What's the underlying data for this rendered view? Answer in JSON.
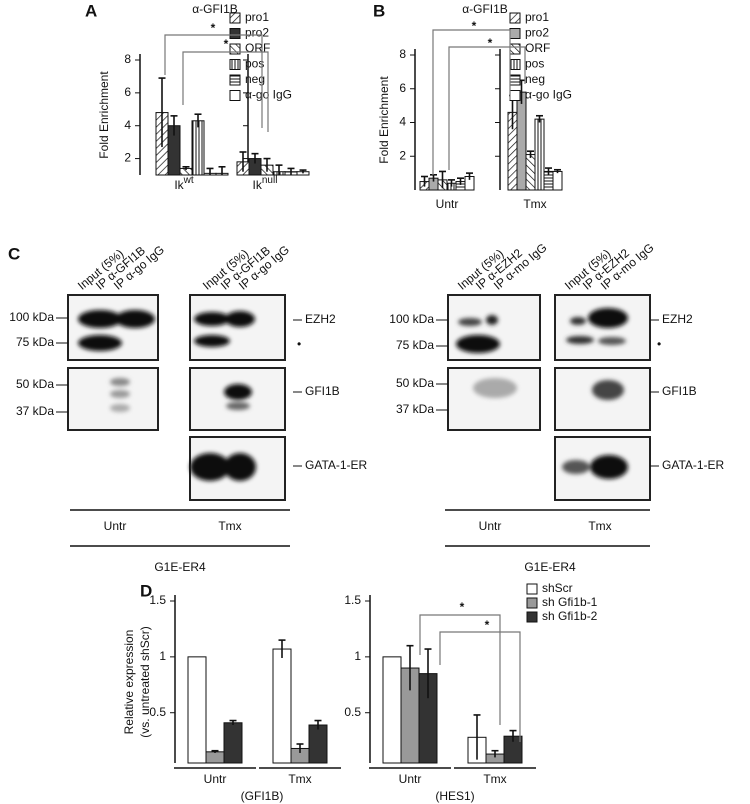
{
  "chart_data": [
    {
      "type": "bar",
      "panel": "A",
      "title": "α-GFI1B",
      "ylabel": [
        "Fold Enrichment"
      ],
      "categories": [
        {
          "text": "Ik",
          "sup": "wt"
        },
        {
          "text": "Ik",
          "sup": "null"
        }
      ],
      "ylim": [
        1,
        8
      ],
      "yticks": [
        2,
        4,
        6,
        8
      ],
      "series": [
        {
          "name": "pro1",
          "color": "#ffffff",
          "pattern": "diag",
          "values": [
            4.8,
            1.8
          ],
          "errors": [
            2.1,
            0.6
          ]
        },
        {
          "name": "pro2",
          "color": "#333333",
          "values": [
            4.0,
            2.0
          ],
          "errors": [
            0.6,
            0.3
          ]
        },
        {
          "name": "ORF",
          "color": "#ffffff",
          "pattern": "antidiag",
          "values": [
            1.4,
            1.6
          ],
          "errors": [
            0.1,
            0.4
          ]
        },
        {
          "name": "pos",
          "color": "#ffffff",
          "pattern": "vert",
          "values": [
            4.3,
            1.2
          ],
          "errors": [
            0.4,
            0.4
          ]
        },
        {
          "name": "neg",
          "color": "#ffffff",
          "pattern": "horiz",
          "values": [
            1.1,
            1.2
          ],
          "errors": [
            0.3,
            0.2
          ]
        },
        {
          "name": "α-go IgG",
          "color": "#ffffff",
          "values": [
            1.1,
            1.2
          ],
          "errors": [
            0.4,
            0.1
          ]
        }
      ],
      "annotations": [
        "*",
        "*"
      ]
    },
    {
      "type": "bar",
      "panel": "B",
      "title": "α-GFI1B",
      "ylabel": [
        "Fold Enrichment"
      ],
      "categories": [
        "Untr",
        "Tmx"
      ],
      "ylim": [
        0,
        8
      ],
      "yticks": [
        2,
        4,
        6,
        8
      ],
      "series": [
        {
          "name": "pro1",
          "color": "#ffffff",
          "pattern": "diag",
          "values": [
            0.5,
            4.6
          ],
          "errors": [
            0.3,
            1.0
          ]
        },
        {
          "name": "pro2",
          "color": "#aaaaaa",
          "values": [
            0.7,
            5.8
          ],
          "errors": [
            0.2,
            0.7
          ]
        },
        {
          "name": "ORF",
          "color": "#ffffff",
          "pattern": "antidiag",
          "values": [
            0.6,
            2.1
          ],
          "errors": [
            0.5,
            0.2
          ]
        },
        {
          "name": "pos",
          "color": "#ffffff",
          "pattern": "vert",
          "values": [
            0.4,
            4.2
          ],
          "errors": [
            0.2,
            0.2
          ]
        },
        {
          "name": "neg",
          "color": "#ffffff",
          "pattern": "horiz",
          "values": [
            0.5,
            1.1
          ],
          "errors": [
            0.2,
            0.2
          ]
        },
        {
          "name": "α-go IgG",
          "color": "#ffffff",
          "values": [
            0.8,
            1.1
          ],
          "errors": [
            0.2,
            0.1
          ]
        }
      ],
      "annotations": [
        "*",
        "*"
      ]
    },
    {
      "type": "bar",
      "panel": "D",
      "ylabel": [
        "Relative expression",
        "(vs. untreated shScr)"
      ],
      "xlabel": "(GFI1B)",
      "categories": [
        "Untr",
        "Tmx"
      ],
      "ylim": [
        0.05,
        1.5
      ],
      "yticks": [
        0.5,
        1,
        1.5
      ],
      "series": [
        {
          "name": "shScr",
          "color": "#ffffff",
          "values": [
            1,
            1.07
          ],
          "errors": [
            null,
            0.08
          ]
        },
        {
          "name": "sh Gfi1b-1",
          "color": "#999999",
          "values": [
            0.15,
            0.18
          ],
          "errors": [
            0.01,
            0.04
          ]
        },
        {
          "name": "sh Gfi1b-2",
          "color": "#333333",
          "values": [
            0.41,
            0.39
          ],
          "errors": [
            0.02,
            0.04
          ]
        }
      ]
    },
    {
      "type": "bar",
      "xlabel": "(HES1)",
      "categories": [
        "Untr",
        "Tmx"
      ],
      "ylim": [
        0.05,
        1.5
      ],
      "yticks": [
        0.5,
        1,
        1.5
      ],
      "series": [
        {
          "name": "shScr",
          "color": "#ffffff",
          "values": [
            1,
            0.28
          ],
          "errors": [
            null,
            0.2
          ]
        },
        {
          "name": "sh Gfi1b-1",
          "color": "#999999",
          "values": [
            0.9,
            0.13
          ],
          "errors": [
            0.2,
            0.03
          ]
        },
        {
          "name": "sh Gfi1b-2",
          "color": "#333333",
          "values": [
            0.85,
            0.29
          ],
          "errors": [
            0.22,
            0.05
          ]
        }
      ],
      "annotations": [
        "*",
        "*"
      ]
    }
  ],
  "blot_panel": "C",
  "blots": [
    {
      "lanes": [
        "Input (5%)",
        "IP α-GFI1B",
        "IP α-go IgG",
        "Input (5%)",
        "IP α-GFI1B",
        "IP α-go IgG"
      ],
      "markers": [
        "100 kDa",
        "75 kDa",
        "50 kDa",
        "37 kDa"
      ],
      "bands": [
        "EZH2",
        "•",
        "GFI1B",
        "GATA-1-ER"
      ],
      "conditions": [
        "Untr",
        "Tmx"
      ],
      "cell_line": "G1E-ER4"
    },
    {
      "lanes": [
        "Input (5%)",
        "IP α-EZH2",
        "IP α-mo IgG",
        "Input (5%)",
        "IP α-EZH2",
        "IP α-mo IgG"
      ],
      "markers": [
        "100 kDa",
        "75 kDa",
        "50 kDa",
        "37 kDa"
      ],
      "bands": [
        "EZH2",
        "•",
        "GFI1B",
        "GATA-1-ER"
      ],
      "conditions": [
        "Untr",
        "Tmx"
      ],
      "cell_line": "G1E-ER4"
    }
  ]
}
